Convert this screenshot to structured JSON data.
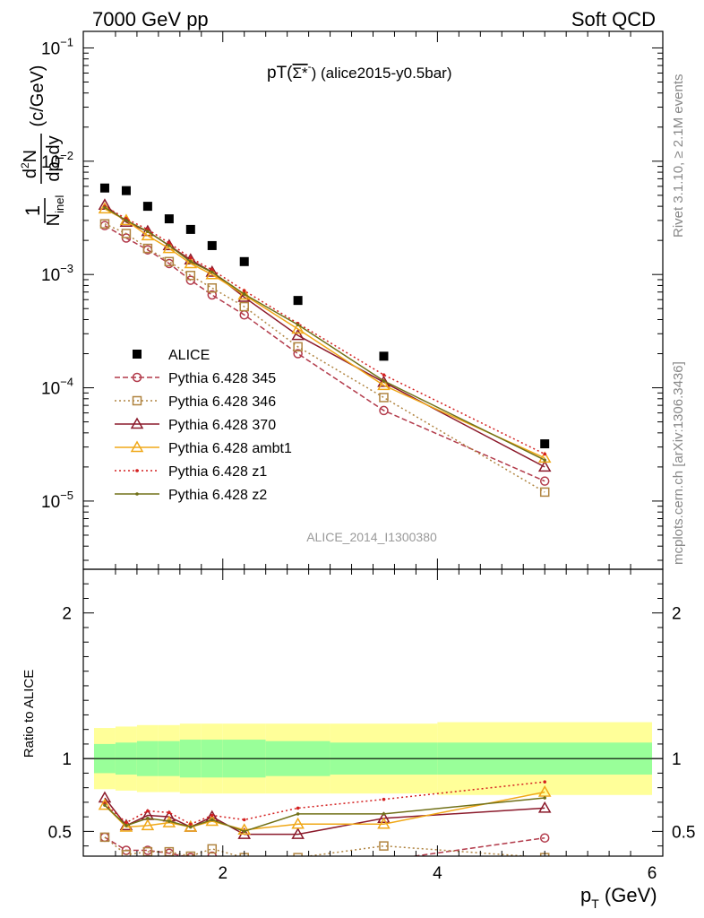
{
  "header": {
    "left": "7000 GeV pp",
    "right": "Soft QCD"
  },
  "side_labels": {
    "rivet": "Rivet 3.1.10, ≥ 2.1M events",
    "mcplots": "mcplots.cern.ch [arXiv:1306.3436]"
  },
  "plot_title": {
    "main": "pT(",
    "particle": "Σ*",
    "sup": "-",
    "tail": ") (alice2015-y0.5bar)"
  },
  "watermark": "ALICE_2014_I1300380",
  "colors": {
    "alice": "#000000",
    "p345": "#b23a4a",
    "p346": "#b08440",
    "p370": "#8b1a2b",
    "ambt1": "#f0a818",
    "z1": "#d42020",
    "z2": "#707018",
    "band_inner": "#99ff99",
    "band_outer": "#ffff99"
  },
  "chart_data": [
    {
      "type": "scatter",
      "panel": "main",
      "ylabel": "1/N_inel d²N/dp_T dy (c/GeV)",
      "yscale": "log",
      "xlim": [
        0.7,
        6.1
      ],
      "ylim": [
        2.5e-06,
        0.14
      ],
      "y_ticks": [
        {
          "v": 0.1,
          "base": "10",
          "exp": "−1"
        },
        {
          "v": 0.01,
          "base": "10",
          "exp": "−2"
        },
        {
          "v": 0.001,
          "base": "10",
          "exp": "−3"
        },
        {
          "v": 0.0001,
          "base": "10",
          "exp": "−4"
        },
        {
          "v": 1e-05,
          "base": "10",
          "exp": "−5"
        }
      ],
      "x": [
        0.9,
        1.1,
        1.3,
        1.5,
        1.7,
        1.9,
        2.2,
        2.7,
        3.5,
        5.0
      ],
      "series": [
        {
          "name": "ALICE",
          "key": "alice",
          "marker": "square-filled",
          "line": "none",
          "values": [
            0.0058,
            0.0055,
            0.004,
            0.0031,
            0.0025,
            0.0018,
            0.0013,
            0.00059,
            0.00019,
            3.2e-05
          ]
        },
        {
          "name": "Pythia 6.428 345",
          "key": "p345",
          "marker": "circle-open",
          "line": "dashed",
          "values": [
            0.0027,
            0.0021,
            0.00165,
            0.00125,
            0.00089,
            0.00066,
            0.00044,
            0.0002,
            6.3e-05,
            1.5e-05
          ]
        },
        {
          "name": "Pythia 6.428 346",
          "key": "p346",
          "marker": "square-open",
          "line": "dotted",
          "values": [
            0.0028,
            0.0023,
            0.0017,
            0.0013,
            0.00098,
            0.00076,
            0.00052,
            0.00023,
            8.2e-05,
            1.2e-05
          ]
        },
        {
          "name": "Pythia 6.428 370",
          "key": "p370",
          "marker": "triangle-open",
          "line": "solid",
          "values": [
            0.0041,
            0.0029,
            0.0024,
            0.0018,
            0.00135,
            0.00105,
            0.00063,
            0.00029,
            0.000112,
            2e-05
          ]
        },
        {
          "name": "Pythia 6.428 ambt1",
          "key": "ambt1",
          "marker": "triangle-open",
          "line": "solid",
          "values": [
            0.0038,
            0.003,
            0.0022,
            0.0017,
            0.00125,
            0.001,
            0.00066,
            0.00033,
            0.000105,
            2.4e-05
          ]
        },
        {
          "name": "Pythia 6.428 z1",
          "key": "z1",
          "marker": "dot",
          "line": "dotted",
          "values": [
            0.004,
            0.0031,
            0.0025,
            0.0019,
            0.0014,
            0.0011,
            0.00072,
            0.00037,
            0.00013,
            2.6e-05
          ]
        },
        {
          "name": "Pythia 6.428 z2",
          "key": "z2",
          "marker": "dot",
          "line": "solid",
          "values": [
            0.0039,
            0.003,
            0.0024,
            0.0018,
            0.0013,
            0.00105,
            0.00067,
            0.00036,
            0.000115,
            2.3e-05
          ]
        }
      ]
    },
    {
      "type": "scatter",
      "panel": "ratio",
      "ylabel": "Ratio to ALICE",
      "xlabel_main": "p",
      "xlabel_sub": "T",
      "xlabel_unit": " (GeV)",
      "xlim": [
        0.7,
        6.1
      ],
      "ylim": [
        0.33,
        2.3
      ],
      "x_ticks": [
        2,
        4,
        6
      ],
      "y_ticks": [
        0.5,
        1,
        2
      ],
      "bands": {
        "edges": [
          0.8,
          1.0,
          1.2,
          1.4,
          1.6,
          1.8,
          2.0,
          2.4,
          3.0,
          4.0,
          6.0
        ],
        "inner_lo": [
          0.9,
          0.89,
          0.88,
          0.88,
          0.87,
          0.87,
          0.87,
          0.88,
          0.89,
          0.89
        ],
        "inner_hi": [
          1.1,
          1.11,
          1.12,
          1.12,
          1.13,
          1.13,
          1.13,
          1.12,
          1.11,
          1.11
        ],
        "outer_lo": [
          0.79,
          0.78,
          0.77,
          0.77,
          0.76,
          0.76,
          0.76,
          0.76,
          0.76,
          0.75
        ],
        "outer_hi": [
          1.21,
          1.22,
          1.23,
          1.23,
          1.24,
          1.24,
          1.24,
          1.24,
          1.24,
          1.25
        ]
      },
      "x": [
        0.9,
        1.1,
        1.3,
        1.5,
        1.7,
        1.9,
        2.2,
        2.7,
        3.5,
        5.0
      ],
      "series": [
        {
          "name": "Pythia 6.428 345",
          "key": "p345",
          "marker": "circle-open",
          "line": "dashed",
          "values": [
            0.46,
            0.37,
            0.37,
            0.35,
            0.32,
            0.33,
            0.3,
            0.3,
            0.3,
            0.455
          ]
        },
        {
          "name": "Pythia 6.428 346",
          "key": "p346",
          "marker": "square-open",
          "line": "dotted",
          "values": [
            0.46,
            0.34,
            0.36,
            0.36,
            0.33,
            0.38,
            0.32,
            0.32,
            0.4,
            0.32
          ]
        },
        {
          "name": "Pythia 6.428 370",
          "key": "p370",
          "marker": "triangle-open",
          "line": "solid",
          "values": [
            0.73,
            0.54,
            0.61,
            0.6,
            0.53,
            0.6,
            0.48,
            0.48,
            0.59,
            0.66
          ]
        },
        {
          "name": "Pythia 6.428 ambt1",
          "key": "ambt1",
          "marker": "triangle-open",
          "line": "solid",
          "values": [
            0.68,
            0.53,
            0.54,
            0.56,
            0.53,
            0.57,
            0.51,
            0.55,
            0.55,
            0.77
          ]
        },
        {
          "name": "Pythia 6.428 z1",
          "key": "z1",
          "marker": "dot",
          "line": "dotted",
          "values": [
            0.69,
            0.56,
            0.64,
            0.63,
            0.55,
            0.61,
            0.58,
            0.66,
            0.72,
            0.84
          ]
        },
        {
          "name": "Pythia 6.428 z2",
          "key": "z2",
          "marker": "dot",
          "line": "solid",
          "values": [
            0.68,
            0.54,
            0.59,
            0.57,
            0.53,
            0.58,
            0.5,
            0.62,
            0.62,
            0.73
          ]
        }
      ]
    }
  ]
}
